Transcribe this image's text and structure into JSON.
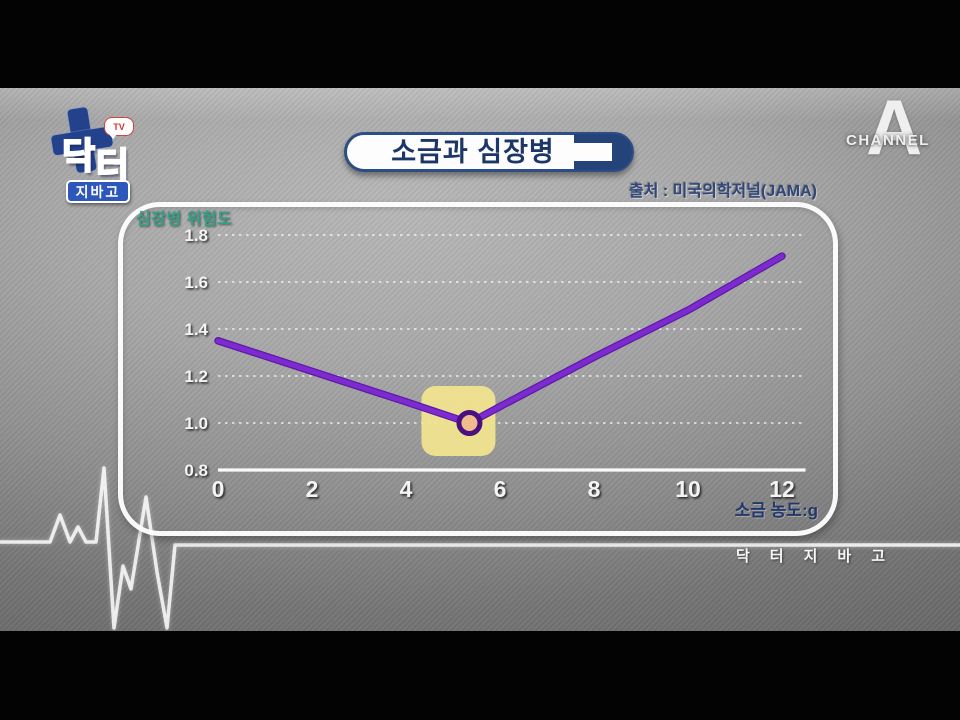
{
  "header": {
    "title": "소금과 심장병",
    "source": "출처 : 미국의학저널(JAMA)"
  },
  "show_logo": {
    "word1": "닥",
    "word2": "터",
    "word3": "지바고",
    "bubble": "TV"
  },
  "channel_logo": {
    "channel": "CHANNEL",
    "letter": "A"
  },
  "watermark": "닥터지바고",
  "colors": {
    "line_purple": "#7d2ad0",
    "line_purple_dark": "#5c1ba6",
    "marker_ring": "#4a1080",
    "marker_fill": "#f2bb8e",
    "highlight_box": "#f2e48e",
    "grid_white": "#ffffff",
    "accent_navy": "#24437a",
    "ylabel_teal": "#36a189"
  },
  "chart_data": {
    "type": "line",
    "title": "소금과 심장병",
    "source": "출처 : 미국의학저널(JAMA)",
    "xlabel": "소금 농도:g",
    "ylabel": "심장병 위험도",
    "x_ticks": [
      0,
      2,
      4,
      6,
      8,
      10,
      12
    ],
    "y_ticks": [
      0.8,
      1.0,
      1.2,
      1.4,
      1.6,
      1.8
    ],
    "xlim": [
      0,
      12.5
    ],
    "ylim": [
      0.8,
      1.9
    ],
    "grid": "horizontal dashed, solid baseline at 0.8",
    "legend": "none",
    "series": [
      {
        "name": "심장병 위험도",
        "x": [
          0,
          2,
          4,
          5.35,
          6,
          8,
          10,
          12
        ],
        "y": [
          1.35,
          1.22,
          1.09,
          1.0,
          1.07,
          1.28,
          1.48,
          1.71
        ]
      }
    ],
    "highlight_point": {
      "x": 5.35,
      "y": 1.0,
      "note": "최저 위험 지점(노란 박스 강조)"
    }
  }
}
